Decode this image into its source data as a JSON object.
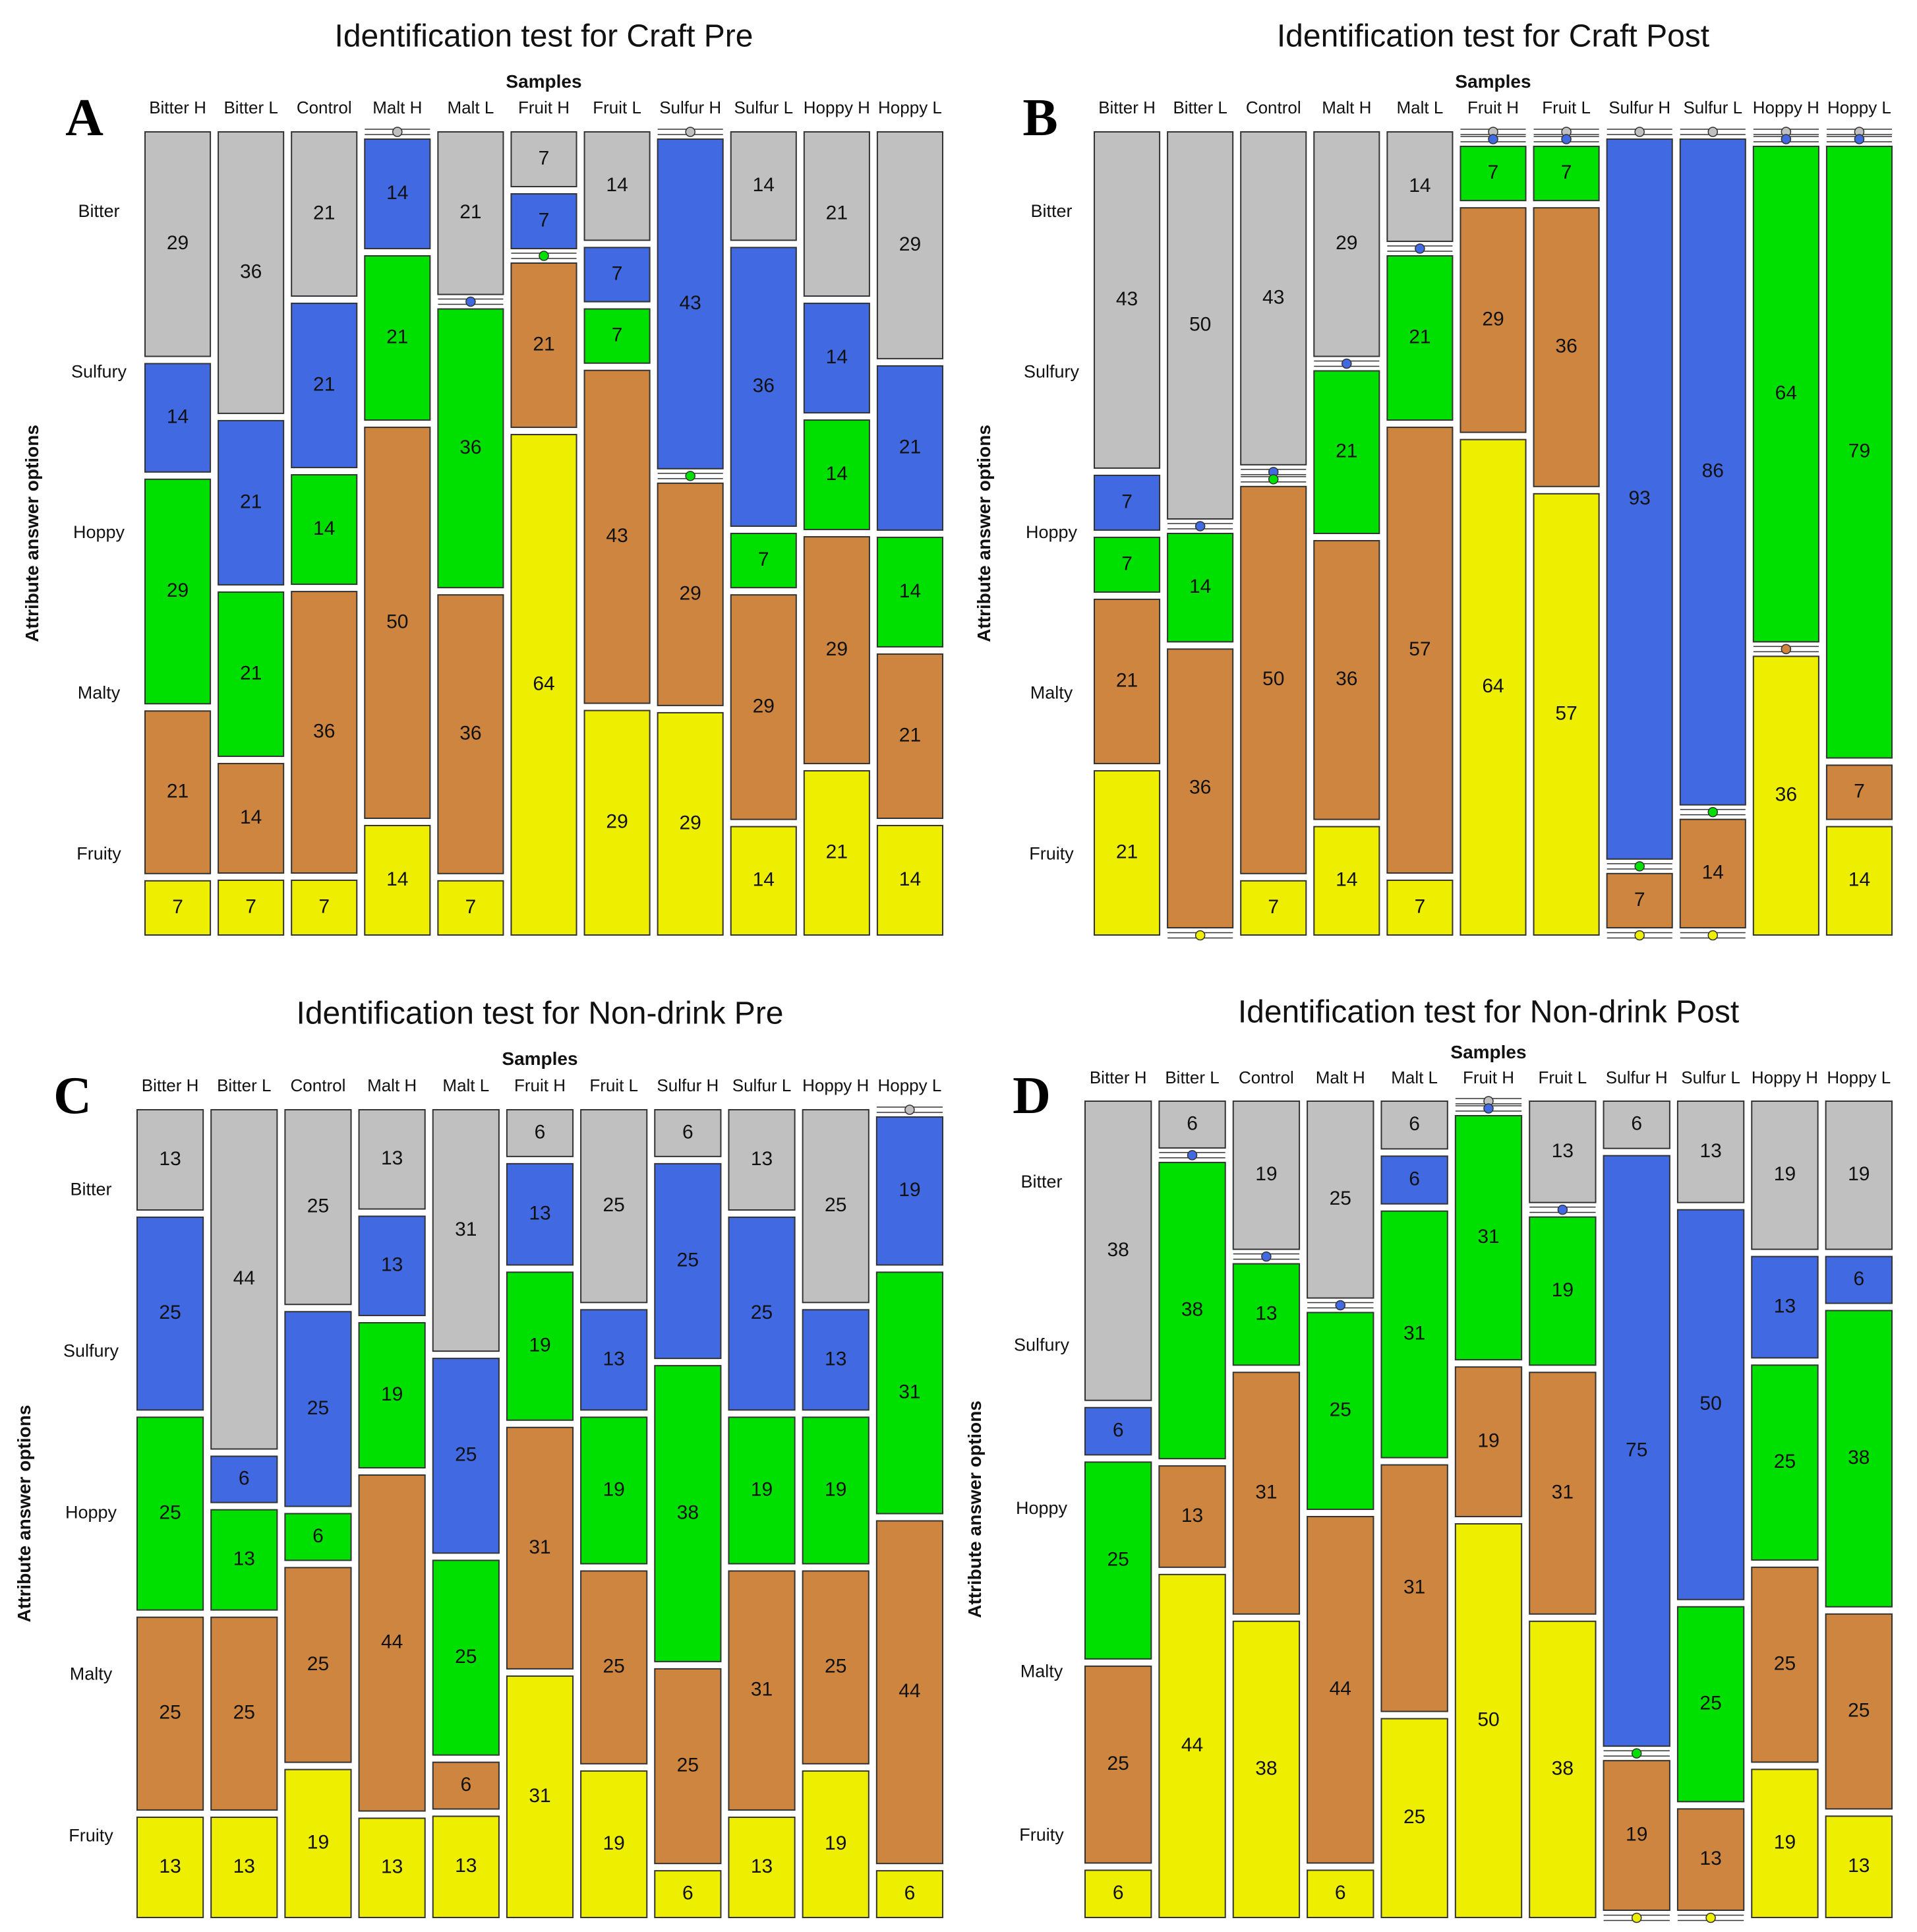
{
  "colors": {
    "Bitter": "#c0c0c0",
    "Sulfury": "#4169e1",
    "Hoppy": "#00e000",
    "Malty": "#cd853f",
    "Fruity": "#eeee00"
  },
  "chart_data": [
    {
      "panel": "A",
      "type": "mosaic",
      "title": "Identification test for Craft Pre",
      "xlabel": "Samples",
      "ylabel": "Attribute answer options",
      "categories": [
        "Bitter H",
        "Bitter L",
        "Control",
        "Malt H",
        "Malt L",
        "Fruit H",
        "Fruit L",
        "Sulfur H",
        "Sulfur L",
        "Hoppy H",
        "Hoppy L"
      ],
      "attributes": [
        "Bitter",
        "Sulfury",
        "Hoppy",
        "Malty",
        "Fruity"
      ],
      "values": [
        [
          29,
          14,
          29,
          21,
          7
        ],
        [
          36,
          21,
          21,
          14,
          7
        ],
        [
          21,
          21,
          14,
          36,
          7
        ],
        [
          0,
          14,
          21,
          50,
          14
        ],
        [
          21,
          0,
          36,
          36,
          7
        ],
        [
          7,
          7,
          0,
          21,
          64
        ],
        [
          14,
          7,
          7,
          43,
          29
        ],
        [
          0,
          43,
          0,
          29,
          29
        ],
        [
          14,
          36,
          7,
          29,
          14
        ],
        [
          21,
          14,
          14,
          29,
          21
        ],
        [
          29,
          21,
          14,
          21,
          14
        ]
      ]
    },
    {
      "panel": "B",
      "type": "mosaic",
      "title": "Identification test for Craft Post",
      "xlabel": "Samples",
      "ylabel": "Attribute answer options",
      "categories": [
        "Bitter H",
        "Bitter L",
        "Control",
        "Malt H",
        "Malt L",
        "Fruit H",
        "Fruit L",
        "Sulfur H",
        "Sulfur L",
        "Hoppy H",
        "Hoppy L"
      ],
      "attributes": [
        "Bitter",
        "Sulfury",
        "Hoppy",
        "Malty",
        "Fruity"
      ],
      "values": [
        [
          43,
          7,
          7,
          21,
          21
        ],
        [
          50,
          0,
          14,
          36,
          0
        ],
        [
          43,
          0,
          0,
          50,
          7
        ],
        [
          29,
          0,
          21,
          36,
          14
        ],
        [
          14,
          0,
          21,
          57,
          7
        ],
        [
          0,
          0,
          7,
          29,
          64
        ],
        [
          0,
          0,
          7,
          36,
          57
        ],
        [
          0,
          93,
          0,
          7,
          0
        ],
        [
          0,
          86,
          0,
          14,
          0
        ],
        [
          0,
          0,
          64,
          0,
          36
        ],
        [
          0,
          0,
          79,
          7,
          14
        ]
      ]
    },
    {
      "panel": "C",
      "type": "mosaic",
      "title": "Identification test for Non-drink Pre",
      "xlabel": "Samples",
      "ylabel": "Attribute answer options",
      "categories": [
        "Bitter H",
        "Bitter L",
        "Control",
        "Malt H",
        "Malt L",
        "Fruit H",
        "Fruit L",
        "Sulfur H",
        "Sulfur L",
        "Hoppy H",
        "Hoppy L"
      ],
      "attributes": [
        "Bitter",
        "Sulfury",
        "Hoppy",
        "Malty",
        "Fruity"
      ],
      "values": [
        [
          13,
          25,
          25,
          25,
          13
        ],
        [
          44,
          6,
          13,
          25,
          13
        ],
        [
          25,
          25,
          6,
          25,
          19
        ],
        [
          13,
          13,
          19,
          44,
          13
        ],
        [
          31,
          25,
          25,
          6,
          13
        ],
        [
          6,
          13,
          19,
          31,
          31
        ],
        [
          25,
          13,
          19,
          25,
          19
        ],
        [
          6,
          25,
          38,
          25,
          6
        ],
        [
          13,
          25,
          19,
          31,
          13
        ],
        [
          25,
          13,
          19,
          25,
          19
        ],
        [
          0,
          19,
          31,
          44,
          6
        ]
      ]
    },
    {
      "panel": "D",
      "type": "mosaic",
      "title": "Identification test for Non-drink Post",
      "xlabel": "Samples",
      "ylabel": "Attribute answer options",
      "categories": [
        "Bitter H",
        "Bitter L",
        "Control",
        "Malt H",
        "Malt L",
        "Fruit H",
        "Fruit L",
        "Sulfur H",
        "Sulfur L",
        "Hoppy H",
        "Hoppy L"
      ],
      "attributes": [
        "Bitter",
        "Sulfury",
        "Hoppy",
        "Malty",
        "Fruity"
      ],
      "values": [
        [
          38,
          6,
          25,
          25,
          6
        ],
        [
          6,
          0,
          38,
          13,
          44
        ],
        [
          19,
          0,
          13,
          31,
          38
        ],
        [
          25,
          0,
          25,
          44,
          6
        ],
        [
          6,
          6,
          31,
          31,
          25
        ],
        [
          0,
          0,
          31,
          19,
          50
        ],
        [
          13,
          0,
          19,
          31,
          38
        ],
        [
          6,
          75,
          0,
          19,
          0
        ],
        [
          13,
          50,
          25,
          13,
          0
        ],
        [
          19,
          13,
          25,
          25,
          19
        ],
        [
          19,
          6,
          38,
          25,
          13
        ]
      ]
    }
  ]
}
